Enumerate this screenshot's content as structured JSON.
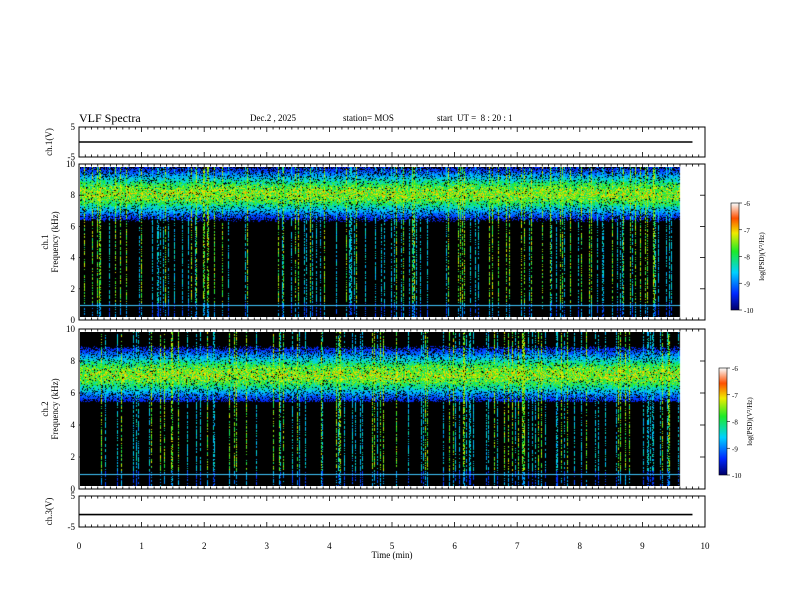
{
  "header": {
    "title": "VLF Spectra",
    "date": "Dec.2 , 2025",
    "station": "station= MOS",
    "start_ut": "start  UT =  8 : 20 : 1"
  },
  "chart_data": [
    {
      "type": "line",
      "name": "waveform-ch1",
      "ylabel": "ch.1(V)",
      "ylim": [
        -5,
        5
      ],
      "yticks": [
        "5",
        "-5"
      ],
      "xlim": [
        0,
        10
      ],
      "x": [
        0,
        9.8
      ],
      "y": [
        0,
        0
      ]
    },
    {
      "type": "heatmap",
      "name": "spectrogram-ch1",
      "ylabel_top": "ch.1",
      "ylabel": "Frequency (kHz)",
      "ylim": [
        0,
        10
      ],
      "yticks": [
        "0",
        "2",
        "4",
        "6",
        "8",
        "10"
      ],
      "xlim": [
        0,
        10
      ],
      "data_extent_min": 9.8,
      "band_khz": [
        7,
        9.5
      ],
      "colorbar": {
        "label": "log(PSD)(V²/Hz)",
        "range": [
          -10,
          -6
        ],
        "ticks": [
          "-6",
          "-7",
          "-8",
          "-9",
          "-10"
        ]
      }
    },
    {
      "type": "heatmap",
      "name": "spectrogram-ch2",
      "ylabel_top": "ch.2",
      "ylabel": "Frequency (kHz)",
      "ylim": [
        0,
        10
      ],
      "yticks": [
        "0",
        "2",
        "4",
        "6",
        "8",
        "10"
      ],
      "xlim": [
        0,
        10
      ],
      "data_extent_min": 9.8,
      "band_khz": [
        6,
        8.5
      ],
      "colorbar": {
        "label": "log(PSD)(V²/Hz)",
        "range": [
          -10,
          -6
        ],
        "ticks": [
          "-6",
          "-7",
          "-8",
          "-9",
          "-10"
        ]
      }
    },
    {
      "type": "line",
      "name": "waveform-ch3",
      "ylabel": "ch.3(V)",
      "ylim": [
        -5,
        5
      ],
      "yticks": [
        "5",
        "-5"
      ],
      "xlim": [
        0,
        10
      ],
      "xlabel": "Time  (min)",
      "xticks": [
        "0",
        "1",
        "2",
        "3",
        "4",
        "5",
        "6",
        "7",
        "8",
        "9",
        "10"
      ],
      "x": [
        0,
        9.8
      ],
      "y": [
        -1,
        -1
      ]
    }
  ]
}
